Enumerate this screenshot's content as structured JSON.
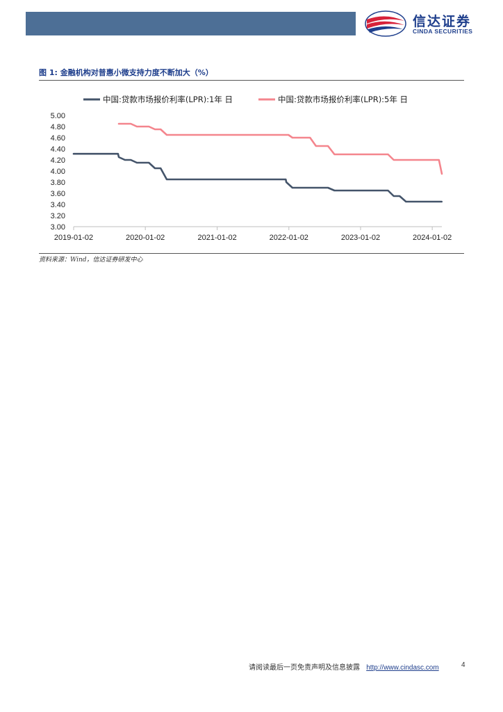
{
  "colors": {
    "header_bar": "#4d6f96",
    "brand": "#1e3e8c",
    "brand_red": "#d7223a",
    "series_1y": "#44546a",
    "series_5y": "#f4858d",
    "grid": "#d9d9d9"
  },
  "header": {
    "logo_cn": "信达证券",
    "logo_en": "CINDA SECURITIES",
    "logo_icon": "cinda-logo-icon"
  },
  "figure": {
    "title": "图 1: 金融机构对普惠小微支持力度不断加大（%）",
    "source": "资料来源：Wind，信达证券研发中心"
  },
  "chart_data": {
    "type": "line",
    "title": "",
    "xlabel": "",
    "ylabel": "",
    "x_ticks": [
      "2019-01-02",
      "2020-01-02",
      "2021-01-02",
      "2022-01-02",
      "2023-01-02",
      "2024-01-02"
    ],
    "y_ticks": [
      "3.00",
      "3.20",
      "3.40",
      "3.60",
      "3.80",
      "4.00",
      "4.20",
      "4.40",
      "4.60",
      "4.80",
      "5.00"
    ],
    "ylim": [
      3.0,
      5.0
    ],
    "xlim": [
      "2019-01-02",
      "2024-02-20"
    ],
    "grid": false,
    "legend_position": "top",
    "series": [
      {
        "name": "中国:贷款市场报价利率(LPR):1年 日",
        "color": "#44546a",
        "points": [
          [
            "2019-01-02",
            4.31
          ],
          [
            "2019-08-16",
            4.31
          ],
          [
            "2019-08-20",
            4.25
          ],
          [
            "2019-09-20",
            4.2
          ],
          [
            "2019-10-20",
            4.2
          ],
          [
            "2019-11-20",
            4.15
          ],
          [
            "2020-01-20",
            4.15
          ],
          [
            "2020-02-20",
            4.05
          ],
          [
            "2020-03-20",
            4.05
          ],
          [
            "2020-04-20",
            3.85
          ],
          [
            "2021-12-17",
            3.85
          ],
          [
            "2021-12-20",
            3.8
          ],
          [
            "2022-01-20",
            3.7
          ],
          [
            "2022-07-20",
            3.7
          ],
          [
            "2022-08-22",
            3.65
          ],
          [
            "2023-05-22",
            3.65
          ],
          [
            "2023-06-20",
            3.55
          ],
          [
            "2023-07-20",
            3.55
          ],
          [
            "2023-08-21",
            3.45
          ],
          [
            "2024-02-19",
            3.45
          ]
        ]
      },
      {
        "name": "中国:贷款市场报价利率(LPR):5年 日",
        "color": "#f4858d",
        "points": [
          [
            "2019-08-20",
            4.85
          ],
          [
            "2019-10-20",
            4.85
          ],
          [
            "2019-11-20",
            4.8
          ],
          [
            "2020-01-20",
            4.8
          ],
          [
            "2020-02-20",
            4.75
          ],
          [
            "2020-03-20",
            4.75
          ],
          [
            "2020-04-20",
            4.65
          ],
          [
            "2021-12-31",
            4.65
          ],
          [
            "2022-01-20",
            4.6
          ],
          [
            "2022-04-20",
            4.6
          ],
          [
            "2022-05-20",
            4.45
          ],
          [
            "2022-07-20",
            4.45
          ],
          [
            "2022-08-22",
            4.3
          ],
          [
            "2023-05-22",
            4.3
          ],
          [
            "2023-06-20",
            4.2
          ],
          [
            "2024-01-20",
            4.2
          ],
          [
            "2024-02-05",
            4.2
          ],
          [
            "2024-02-20",
            3.95
          ]
        ]
      }
    ]
  },
  "footer": {
    "disclaimer": "请阅读最后一页免责声明及信息披露",
    "link": "http://www.cindasc.com",
    "page": "4"
  }
}
